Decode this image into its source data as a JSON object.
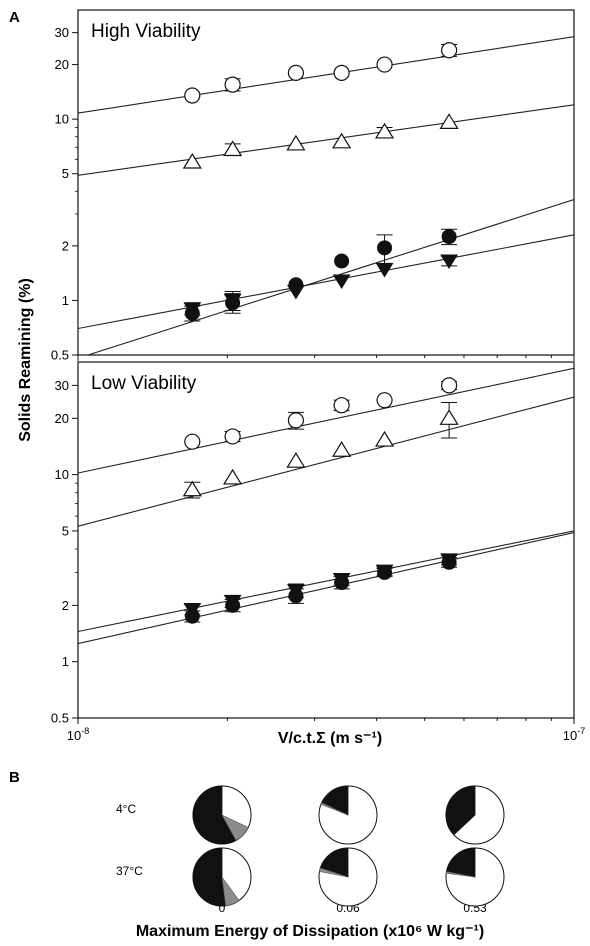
{
  "panel_labels": {
    "a": "A",
    "b": "B"
  },
  "chart_data": [
    {
      "type": "scatter",
      "panel": "A",
      "title": "High Viability",
      "xscale": "log",
      "yscale": "log",
      "xlim": [
        1e-08,
        1e-07
      ],
      "ylim": [
        0.5,
        40
      ],
      "y_ticks": [
        0.5,
        1,
        2,
        5,
        10,
        20,
        30
      ],
      "series": [
        {
          "marker": "open-circle",
          "x": [
            1.7e-08,
            2.05e-08,
            2.75e-08,
            3.4e-08,
            4.15e-08,
            5.6e-08
          ],
          "y": [
            13.5,
            15.5,
            18,
            18,
            20,
            24
          ],
          "err": [
            0,
            1.2,
            0,
            0,
            0,
            1.8
          ],
          "fit": [
            [
              1e-08,
              10.8
            ],
            [
              1e-07,
              28.5
            ]
          ]
        },
        {
          "marker": "open-triangle",
          "x": [
            1.7e-08,
            2.05e-08,
            2.75e-08,
            3.4e-08,
            4.15e-08,
            5.6e-08
          ],
          "y": [
            5.8,
            6.8,
            7.3,
            7.5,
            8.5,
            9.6
          ],
          "err": [
            0,
            0.5,
            0,
            0,
            0.5,
            0
          ],
          "fit": [
            [
              1e-08,
              4.9
            ],
            [
              1e-07,
              12
            ]
          ]
        },
        {
          "marker": "filled-circle",
          "x": [
            1.7e-08,
            2.05e-08,
            2.75e-08,
            3.4e-08,
            4.15e-08,
            5.6e-08
          ],
          "y": [
            0.85,
            0.97,
            1.22,
            1.65,
            1.95,
            2.25
          ],
          "err": [
            0.08,
            0.12,
            0,
            0,
            0.35,
            0.22
          ],
          "fit": [
            [
              1e-08,
              0.48
            ],
            [
              1e-07,
              3.6
            ]
          ]
        },
        {
          "marker": "filled-triangle-down",
          "x": [
            1.7e-08,
            2.05e-08,
            2.75e-08,
            3.4e-08,
            4.15e-08,
            5.6e-08
          ],
          "y": [
            0.9,
            1.0,
            1.12,
            1.28,
            1.48,
            1.65
          ],
          "err": [
            0.07,
            0.12,
            0,
            0,
            0,
            0.1
          ],
          "fit": [
            [
              1e-08,
              0.7
            ],
            [
              1e-07,
              2.3
            ]
          ]
        }
      ]
    },
    {
      "type": "scatter",
      "panel": "A",
      "title": "Low Viability",
      "xscale": "log",
      "yscale": "log",
      "xlim": [
        1e-08,
        1e-07
      ],
      "ylim": [
        0.5,
        40
      ],
      "xlabel": "V/c.t.Σ (m s⁻¹)",
      "ylabel": "Solids Reamining (%)",
      "y_ticks": [
        0.5,
        1,
        2,
        5,
        10,
        20,
        30
      ],
      "x_ticks": [
        {
          "base": "10",
          "exp": "-8"
        },
        {
          "base": "10",
          "exp": "-7"
        }
      ],
      "series": [
        {
          "marker": "open-circle",
          "x": [
            1.7e-08,
            2.05e-08,
            2.75e-08,
            3.4e-08,
            4.15e-08,
            5.6e-08
          ],
          "y": [
            15,
            16,
            19.5,
            23.5,
            25,
            30
          ],
          "err": [
            0,
            1,
            2,
            1.5,
            0,
            1.5
          ],
          "fit": [
            [
              1e-08,
              10.2
            ],
            [
              1e-07,
              37
            ]
          ]
        },
        {
          "marker": "open-triangle",
          "x": [
            1.7e-08,
            2.05e-08,
            2.75e-08,
            3.4e-08,
            4.15e-08,
            5.6e-08
          ],
          "y": [
            8.3,
            9.6,
            11.8,
            13.5,
            15.3,
            20
          ],
          "err": [
            0.8,
            0,
            0,
            0,
            0,
            4.3
          ],
          "fit": [
            [
              1e-08,
              5.3
            ],
            [
              1e-07,
              26
            ]
          ]
        },
        {
          "marker": "filled-circle",
          "x": [
            1.7e-08,
            2.05e-08,
            2.75e-08,
            3.4e-08,
            4.15e-08,
            5.6e-08
          ],
          "y": [
            1.75,
            2.0,
            2.25,
            2.65,
            3.0,
            3.4
          ],
          "err": [
            0.12,
            0.15,
            0.2,
            0.2,
            0.15,
            0.2
          ],
          "fit": [
            [
              1e-08,
              1.25
            ],
            [
              1e-07,
              4.9
            ]
          ]
        },
        {
          "marker": "filled-triangle-down",
          "x": [
            1.7e-08,
            2.05e-08,
            2.75e-08,
            3.4e-08,
            4.15e-08,
            5.6e-08
          ],
          "y": [
            1.9,
            2.1,
            2.4,
            2.75,
            3.05,
            3.5
          ],
          "err": [
            0.12,
            0.15,
            0.2,
            0.2,
            0.15,
            0.2
          ],
          "fit": [
            [
              1e-08,
              1.45
            ],
            [
              1e-07,
              5.0
            ]
          ]
        }
      ]
    },
    {
      "type": "pie",
      "panel": "B",
      "xlabel": "Maximum Energy of Dissipation (x10⁶ W kg⁻¹)",
      "columns": [
        "0",
        "0.06",
        "0.53"
      ],
      "rows": [
        "4°C",
        "37°C"
      ],
      "colors": {
        "black": "#111111",
        "gray": "#8c8c8c",
        "white": "#ffffff"
      },
      "pies": [
        [
          {
            "black": 0.58,
            "gray": 0.1,
            "white": 0.32
          },
          {
            "black": 0.18,
            "gray": 0.01,
            "white": 0.81
          },
          {
            "black": 0.37,
            "gray": 0.0,
            "white": 0.63
          }
        ],
        [
          {
            "black": 0.52,
            "gray": 0.08,
            "white": 0.4
          },
          {
            "black": 0.2,
            "gray": 0.02,
            "white": 0.78
          },
          {
            "black": 0.22,
            "gray": 0.01,
            "white": 0.77
          }
        ]
      ]
    }
  ]
}
